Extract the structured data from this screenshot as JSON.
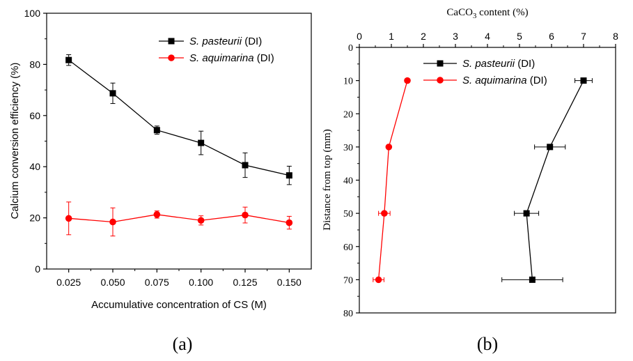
{
  "chart_data": [
    {
      "type": "line",
      "panel_label": "(a)",
      "xlabel": "Accumulative  concentration of CS (M)",
      "ylabel": "Calcium conversion efficiency (%)",
      "xlim": [
        0.0125,
        0.1625
      ],
      "ylim": [
        0,
        100
      ],
      "x_ticks": [
        "0.025",
        "0.050",
        "0.075",
        "0.100",
        "0.125",
        "0.150"
      ],
      "y_ticks": [
        "0",
        "20",
        "40",
        "60",
        "80",
        "100"
      ],
      "legend_position": "top-right",
      "series": [
        {
          "name_italic": "S. pasteurii",
          "name_suffix": " (DI)",
          "color": "#000000",
          "marker": "square",
          "x": [
            0.025,
            0.05,
            0.075,
            0.1,
            0.125,
            0.15
          ],
          "y": [
            81.7,
            68.7,
            54.3,
            49.3,
            40.6,
            36.6
          ],
          "err": [
            2.1,
            4.0,
            1.6,
            4.6,
            4.8,
            3.6
          ]
        },
        {
          "name_italic": "S. aquimarina",
          "name_suffix": " (DI)",
          "color": "#ff0000",
          "marker": "circle",
          "x": [
            0.025,
            0.05,
            0.075,
            0.1,
            0.125,
            0.15
          ],
          "y": [
            19.8,
            18.4,
            21.3,
            19.0,
            21.1,
            18.1
          ],
          "err": [
            6.4,
            5.5,
            1.4,
            1.8,
            3.1,
            2.5
          ]
        }
      ]
    },
    {
      "type": "line",
      "panel_label": "(b)",
      "xlabel_pre": "CaCO",
      "xlabel_sub": "3",
      "xlabel_post": " content (%)",
      "ylabel": "Distance from top (mm)",
      "xlim": [
        0,
        8
      ],
      "ylim": [
        80,
        0
      ],
      "x_ticks": [
        "0",
        "1",
        "2",
        "3",
        "4",
        "5",
        "6",
        "7",
        "8"
      ],
      "y_ticks": [
        "0",
        "10",
        "20",
        "30",
        "40",
        "50",
        "60",
        "70",
        "80"
      ],
      "legend_position": "top-left",
      "series": [
        {
          "name_italic": "S. pasteurii",
          "name_suffix": " (DI)",
          "color": "#000000",
          "marker": "square",
          "x": [
            7.0,
            5.95,
            5.22,
            5.4
          ],
          "y": [
            10,
            30,
            50,
            70
          ],
          "xerr": [
            0.27,
            0.48,
            0.38,
            0.95
          ]
        },
        {
          "name_italic": "S. aquimarina",
          "name_suffix": " (DI)",
          "color": "#ff0000",
          "marker": "circle",
          "x": [
            1.5,
            0.92,
            0.78,
            0.6
          ],
          "y": [
            10,
            30,
            50,
            70
          ],
          "xerr": [
            0.05,
            0.05,
            0.18,
            0.17
          ]
        }
      ]
    }
  ]
}
